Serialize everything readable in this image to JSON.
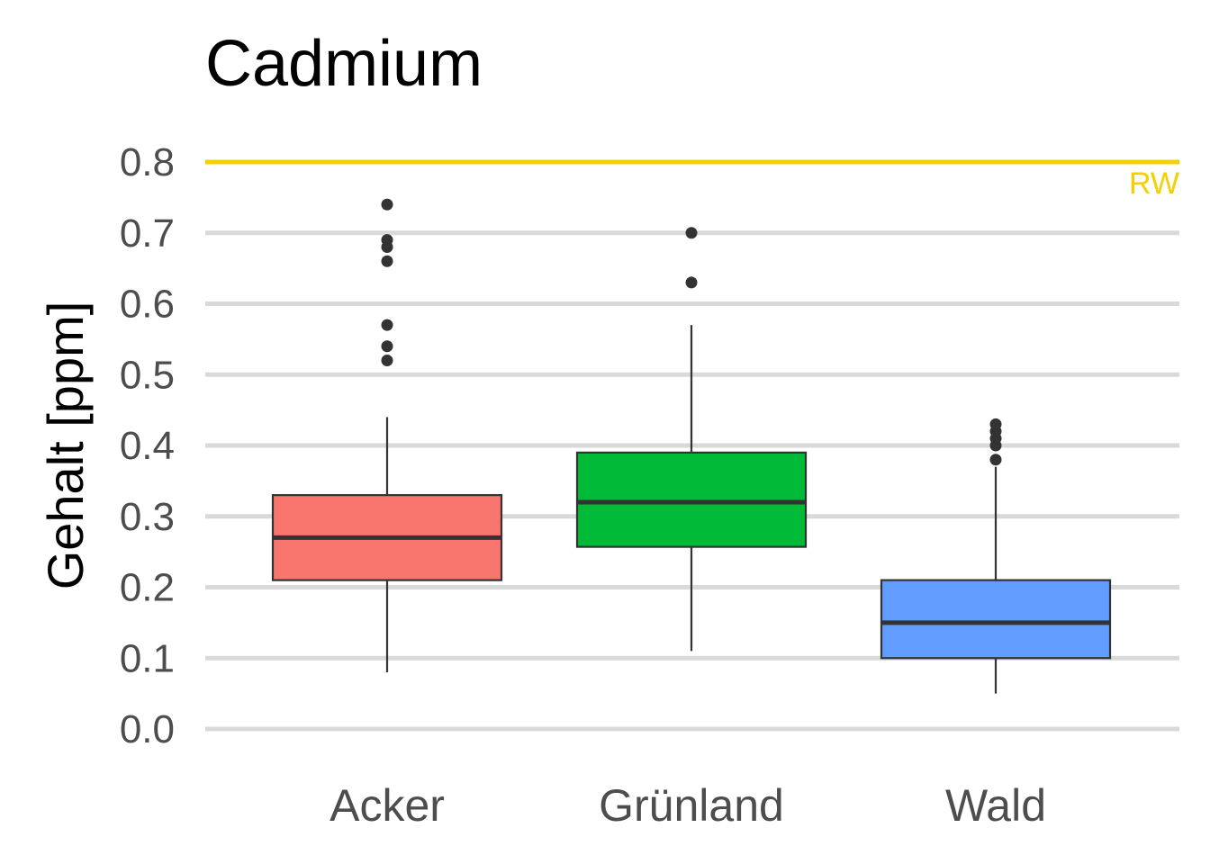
{
  "chart_data": {
    "type": "boxplot",
    "title": "Cadmium",
    "ylabel": "Gehalt [ppm]",
    "xlabel": "",
    "ylim": [
      0,
      0.8
    ],
    "yticks": [
      "0.0",
      "0.1",
      "0.2",
      "0.3",
      "0.4",
      "0.5",
      "0.6",
      "0.7",
      "0.8"
    ],
    "grid": true,
    "categories": [
      "Acker",
      "Grünland",
      "Wald"
    ],
    "boxes": [
      {
        "category": "Acker",
        "color": "#F8766D",
        "whisker_low": 0.08,
        "q1": 0.21,
        "median": 0.27,
        "q3": 0.33,
        "whisker_high": 0.44,
        "outliers": [
          0.52,
          0.54,
          0.57,
          0.66,
          0.68,
          0.69,
          0.74
        ]
      },
      {
        "category": "Grünland",
        "color": "#00BA38",
        "whisker_low": 0.11,
        "q1": 0.257,
        "median": 0.32,
        "q3": 0.39,
        "whisker_high": 0.57,
        "outliers": [
          0.63,
          0.7
        ]
      },
      {
        "category": "Wald",
        "color": "#619CFF",
        "whisker_low": 0.05,
        "q1": 0.1,
        "median": 0.15,
        "q3": 0.21,
        "whisker_high": 0.37,
        "outliers": [
          0.38,
          0.4,
          0.41,
          0.42,
          0.43
        ]
      }
    ],
    "reference_line": {
      "value": 0.8,
      "label": "RW",
      "color": "#F5D000"
    }
  }
}
